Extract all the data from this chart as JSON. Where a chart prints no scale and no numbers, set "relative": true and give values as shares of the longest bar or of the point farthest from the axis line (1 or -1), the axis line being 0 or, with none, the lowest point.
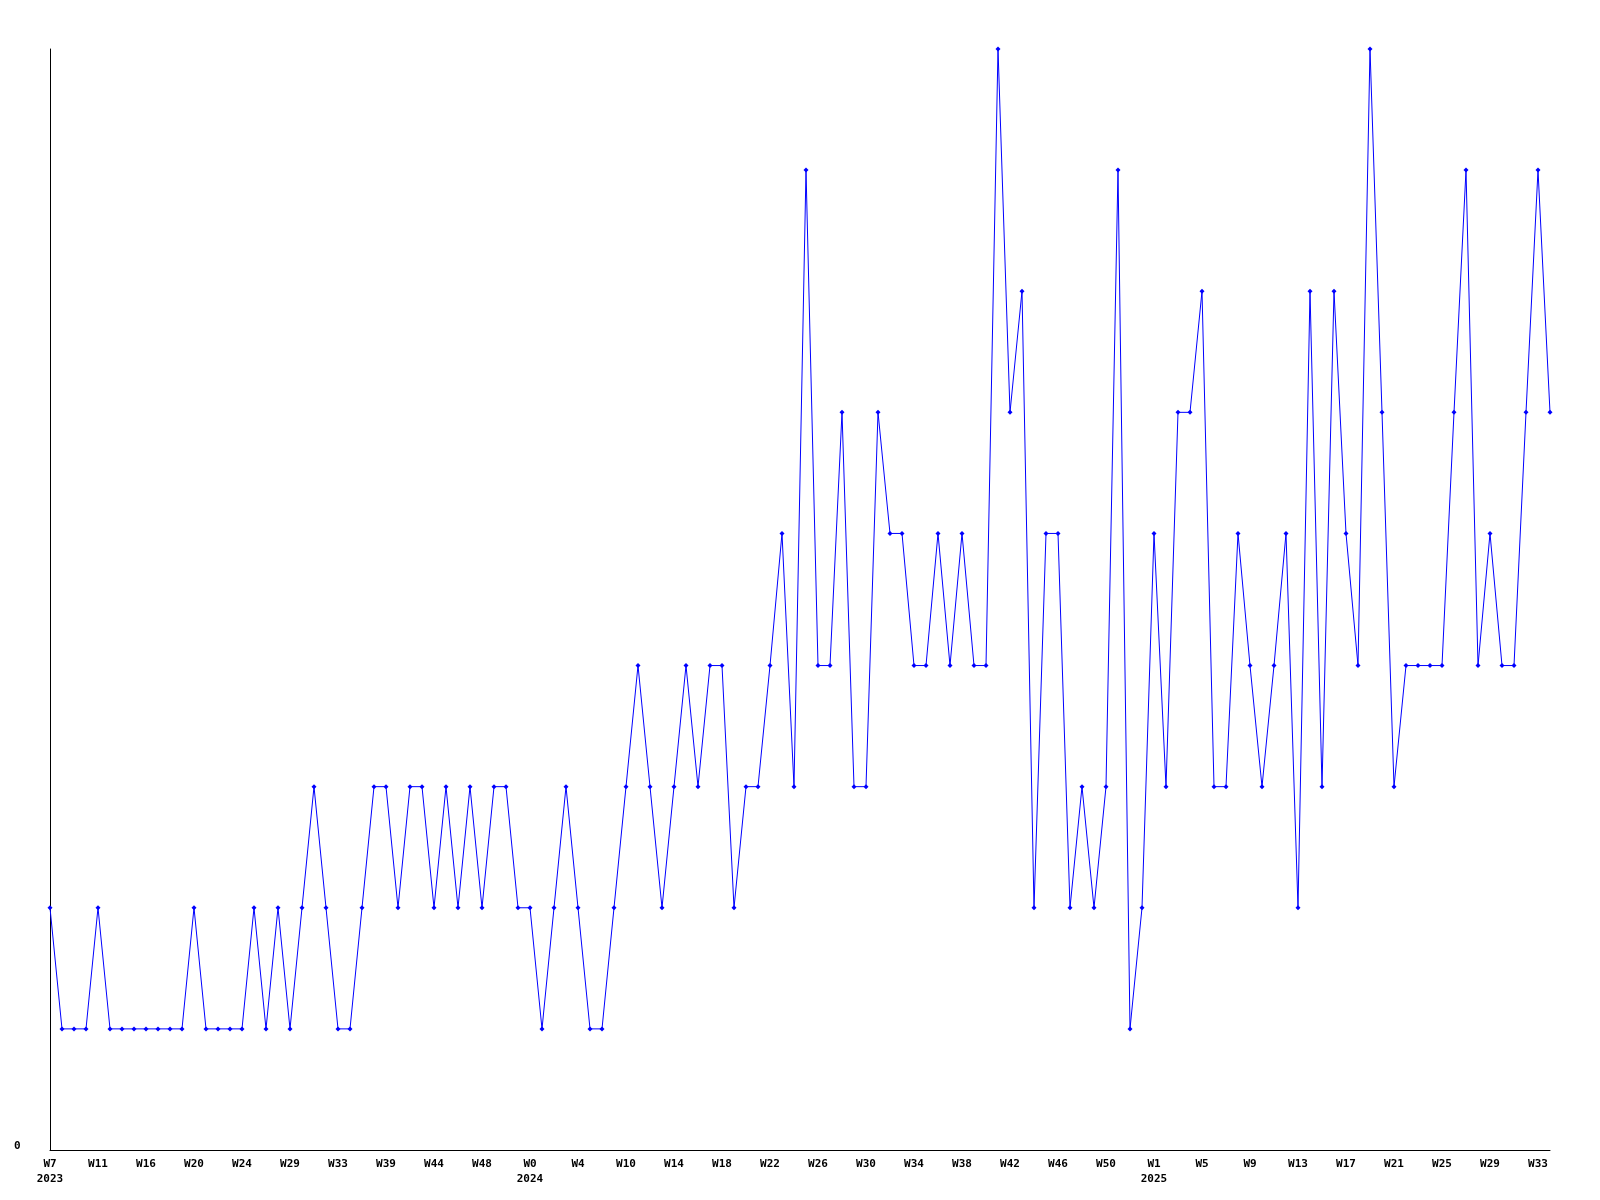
{
  "chart_data": {
    "type": "line",
    "relative": true,
    "color": "#0000ff",
    "marker": "diamond",
    "line_style": "solid",
    "grid": false,
    "annotations": [
      "0"
    ],
    "categories": [
      "W7\n2023",
      null,
      null,
      null,
      "W11",
      null,
      null,
      null,
      "W16",
      null,
      null,
      null,
      "W20",
      null,
      null,
      null,
      "W24",
      null,
      null,
      null,
      "W29",
      null,
      null,
      null,
      "W33",
      null,
      null,
      null,
      "W39",
      null,
      null,
      null,
      "W44",
      null,
      null,
      null,
      "W48",
      null,
      null,
      null,
      "W0\n2024",
      null,
      null,
      null,
      "W4",
      null,
      null,
      null,
      "W10",
      null,
      null,
      null,
      "W14",
      null,
      null,
      null,
      "W18",
      null,
      null,
      null,
      "W22",
      null,
      null,
      null,
      "W26",
      null,
      null,
      null,
      "W30",
      null,
      null,
      null,
      "W34",
      null,
      null,
      null,
      "W38",
      null,
      null,
      null,
      "W42",
      null,
      null,
      null,
      "W46",
      null,
      null,
      null,
      "W50",
      null,
      null,
      null,
      "W1\n2025",
      null,
      null,
      null,
      "W5",
      null,
      null,
      null,
      "W9",
      null,
      null,
      null,
      "W13",
      null,
      null,
      null,
      "W17",
      null,
      null,
      null,
      "W21",
      null,
      null,
      null,
      "W25",
      null,
      null,
      null,
      "W29",
      null,
      null,
      null,
      "W33",
      null
    ],
    "values": [
      0.22,
      0.11,
      0.11,
      0.11,
      0.22,
      0.11,
      0.11,
      0.11,
      0.11,
      0.11,
      0.11,
      0.11,
      0.22,
      0.11,
      0.11,
      0.11,
      0.11,
      0.22,
      0.11,
      0.22,
      0.11,
      0.22,
      0.33,
      0.22,
      0.11,
      0.11,
      0.22,
      0.33,
      0.33,
      0.22,
      0.33,
      0.33,
      0.22,
      0.33,
      0.22,
      0.33,
      0.22,
      0.33,
      0.33,
      0.22,
      0.22,
      0.11,
      0.22,
      0.33,
      0.22,
      0.11,
      0.11,
      0.22,
      0.33,
      0.44,
      0.33,
      0.22,
      0.33,
      0.44,
      0.33,
      0.44,
      0.44,
      0.22,
      0.33,
      0.33,
      0.44,
      0.56,
      0.33,
      0.89,
      0.44,
      0.44,
      0.67,
      0.33,
      0.33,
      0.67,
      0.56,
      0.56,
      0.44,
      0.44,
      0.56,
      0.44,
      0.56,
      0.44,
      0.44,
      1,
      0.67,
      0.78,
      0.22,
      0.56,
      0.56,
      0.22,
      0.33,
      0.22,
      0.33,
      0.89,
      0.11,
      0.22,
      0.56,
      0.33,
      0.67,
      0.67,
      0.78,
      0.33,
      0.33,
      0.56,
      0.44,
      0.33,
      0.44,
      0.56,
      0.22,
      0.78,
      0.33,
      0.78,
      0.56,
      0.44,
      1,
      0.67,
      0.33,
      0.44,
      0.44,
      0.44,
      0.44,
      0.67,
      0.89,
      0.44,
      0.56,
      0.44,
      0.44,
      0.67,
      0.89,
      0.67
    ]
  }
}
